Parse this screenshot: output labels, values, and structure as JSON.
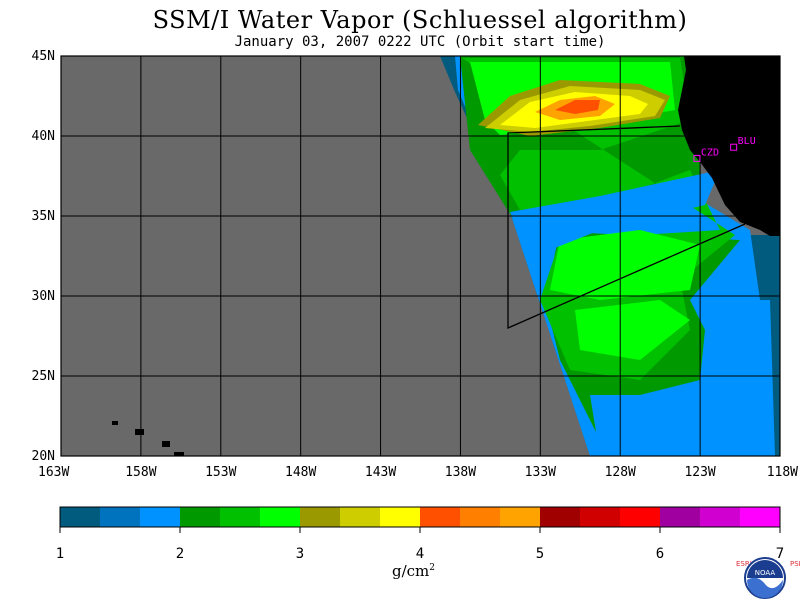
{
  "title": "SSM/I Water Vapor (Schluessel algorithm)",
  "subtitle": "January 03, 2007  0222 UTC  (Orbit start time)",
  "map": {
    "lat_labels": [
      "45N",
      "40N",
      "35N",
      "30N",
      "25N",
      "20N"
    ],
    "lon_labels": [
      "163W",
      "158W",
      "153W",
      "148W",
      "143W",
      "138W",
      "133W",
      "128W",
      "123W",
      "118W"
    ],
    "lon_range": [
      -163,
      -118
    ],
    "lat_range": [
      20,
      45
    ],
    "colors": {
      "no_data": "#696969",
      "land": "#000000",
      "grid": "#000000",
      "station": "#ff00ff"
    },
    "stations": [
      {
        "name": "CZD",
        "lon": -123.2,
        "lat": 38.6
      },
      {
        "name": "BLU",
        "lon": -120.9,
        "lat": 39.3
      }
    ]
  },
  "colorbar": {
    "ticks": [
      "1",
      "2",
      "3",
      "4",
      "5",
      "6",
      "7"
    ],
    "units": "g/cm",
    "units_exp": "2",
    "colors": [
      "#005b7f",
      "#0073bf",
      "#0093ff",
      "#009900",
      "#00c000",
      "#00ff00",
      "#9a9a00",
      "#cdcd00",
      "#ffff00",
      "#ff5000",
      "#ff7f00",
      "#ffa300",
      "#a00000",
      "#d00000",
      "#ff0000",
      "#a000a0",
      "#d000d0",
      "#ff00ff"
    ]
  },
  "logo": {
    "text": "NOAA",
    "left_letters": "ESRL",
    "right_letters": "PSD"
  }
}
